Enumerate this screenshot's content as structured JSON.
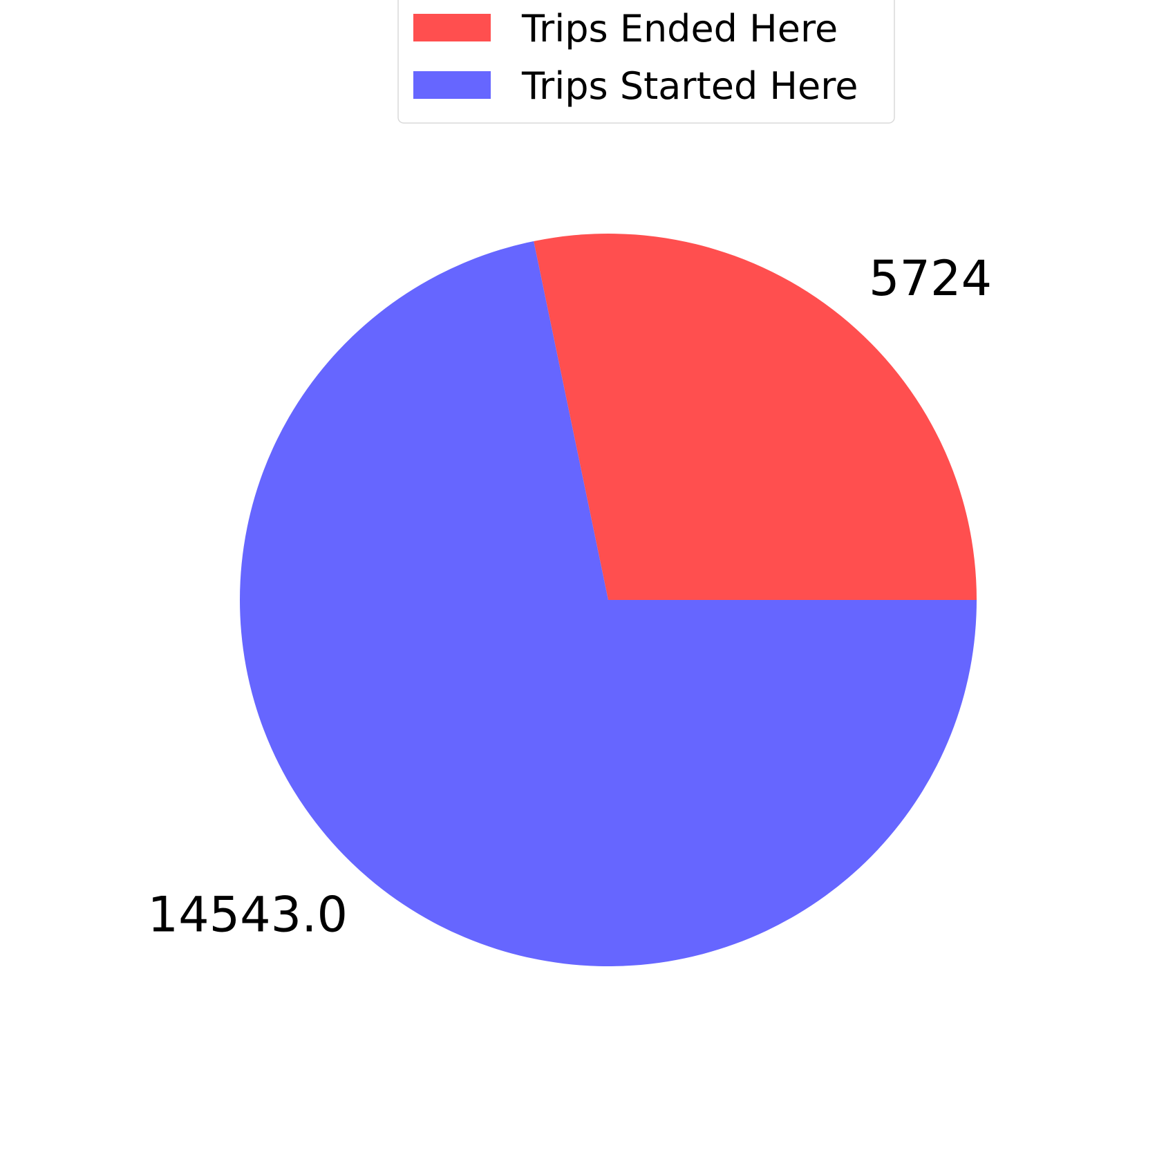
{
  "chart_data": {
    "type": "pie",
    "title": "",
    "slices": [
      {
        "name": "Trips Ended Here",
        "value": 5724,
        "label": "5724",
        "color": "#ff4f4f"
      },
      {
        "name": "Trips Started Here",
        "value": 14543.0,
        "label": "14543.0",
        "color": "#6666ff"
      }
    ],
    "start_angle_deg": 0,
    "direction": "counterclockwise",
    "legend": {
      "placement": "top-center",
      "entries": [
        "Trips Ended Here",
        "Trips Started Here"
      ]
    }
  }
}
